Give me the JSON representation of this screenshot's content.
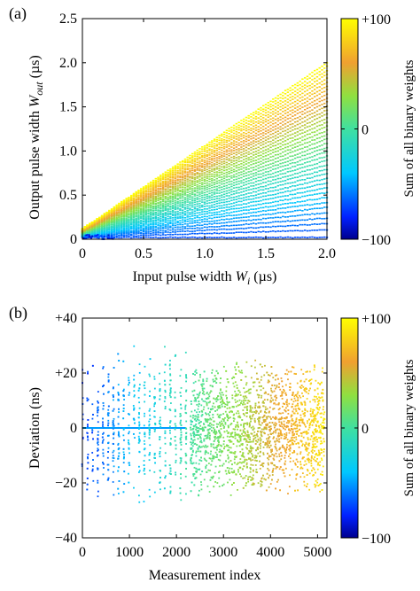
{
  "chart_data": [
    {
      "panel_label": "(a)",
      "type": "scatter",
      "xlabel_main": "Input pulse width ",
      "xlabel_var": "W",
      "xlabel_sub": "i",
      "xlabel_unit": " (µs)",
      "ylabel_main": "Output pulse width ",
      "ylabel_var": "W",
      "ylabel_sub": "out",
      "ylabel_unit": " (µs)",
      "xlim": [
        0,
        2.0
      ],
      "ylim": [
        0,
        2.5
      ],
      "xticks": [
        0,
        0.5,
        1,
        1.5,
        2
      ],
      "xtick_labels": [
        "0",
        "0.5",
        "1.0",
        "1.5",
        "2.0"
      ],
      "yticks": [
        0,
        0.5,
        1,
        1.5,
        2,
        2.5
      ],
      "ytick_labels": [
        "0",
        "0.5",
        "1.0",
        "1.5",
        "2.0",
        "2.5"
      ],
      "color_value_range": [
        -100,
        100
      ],
      "series_description": {
        "fan_lines": 40,
        "x_step": 0.02,
        "intercept_range": [
          0.02,
          0.12
        ],
        "slope_max": 0.94,
        "slope_min": 0.0
      },
      "colorbar": {
        "label": "Sum of  all binary weights",
        "ticks": [
          100,
          0,
          -100
        ],
        "tick_labels": [
          "+100",
          "0",
          "−100"
        ]
      }
    },
    {
      "panel_label": "(b)",
      "type": "scatter",
      "xlabel": "Measurement index",
      "ylabel": "Deviation (ns)",
      "xlim": [
        0,
        5200
      ],
      "ylim": [
        -40,
        40
      ],
      "xticks": [
        0,
        1000,
        2000,
        3000,
        4000,
        5000
      ],
      "xtick_labels": [
        "0",
        "1000",
        "2000",
        "3000",
        "4000",
        "5000"
      ],
      "yticks": [
        40,
        20,
        0,
        -20,
        -40
      ],
      "ytick_labels": [
        "+40",
        "+20",
        "0",
        "−20",
        "−40"
      ],
      "color_value_range": [
        -100,
        100
      ],
      "series_description": {
        "index_range": [
          0,
          5150
        ],
        "deviation_spread": 25,
        "baseline": 0,
        "baseline_to_index": 2200
      },
      "colorbar": {
        "label": "Sum of  all binary weights",
        "ticks": [
          100,
          0,
          -100
        ],
        "tick_labels": [
          "+100",
          "0",
          "−100"
        ]
      }
    }
  ]
}
